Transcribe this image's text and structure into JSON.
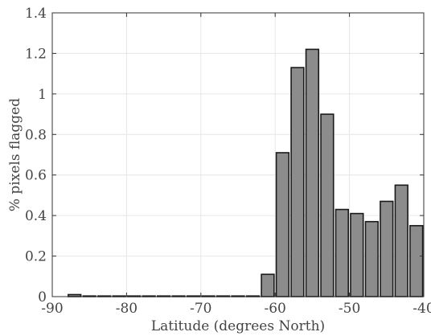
{
  "chart_data": {
    "type": "bar",
    "title": "",
    "xlabel": "Latitude (degrees North)",
    "ylabel": "% pixels flagged",
    "xlim": [
      -90,
      -40
    ],
    "ylim": [
      0,
      1.4
    ],
    "xticks": [
      -90,
      -80,
      -70,
      -60,
      -50,
      -40
    ],
    "yticks": [
      0,
      0.2,
      0.4,
      0.6,
      0.8,
      1,
      1.2,
      1.4
    ],
    "grid": true,
    "bar_width": 1.7,
    "bar_color": "#8c8c8c",
    "edge_color": "#1a1a1a",
    "x": [
      -87,
      -85,
      -83,
      -81,
      -79,
      -77,
      -75,
      -73,
      -71,
      -69,
      -67,
      -65,
      -63,
      -61,
      -59,
      -57,
      -55,
      -53,
      -51,
      -49,
      -47,
      -45,
      -43,
      -41
    ],
    "values": [
      0.01,
      0,
      0,
      0,
      0,
      0,
      0,
      0,
      0,
      0,
      0,
      0,
      0,
      0.11,
      0.71,
      1.13,
      1.22,
      0.9,
      0.43,
      0.41,
      0.37,
      0.47,
      0.55,
      0.35
    ]
  }
}
